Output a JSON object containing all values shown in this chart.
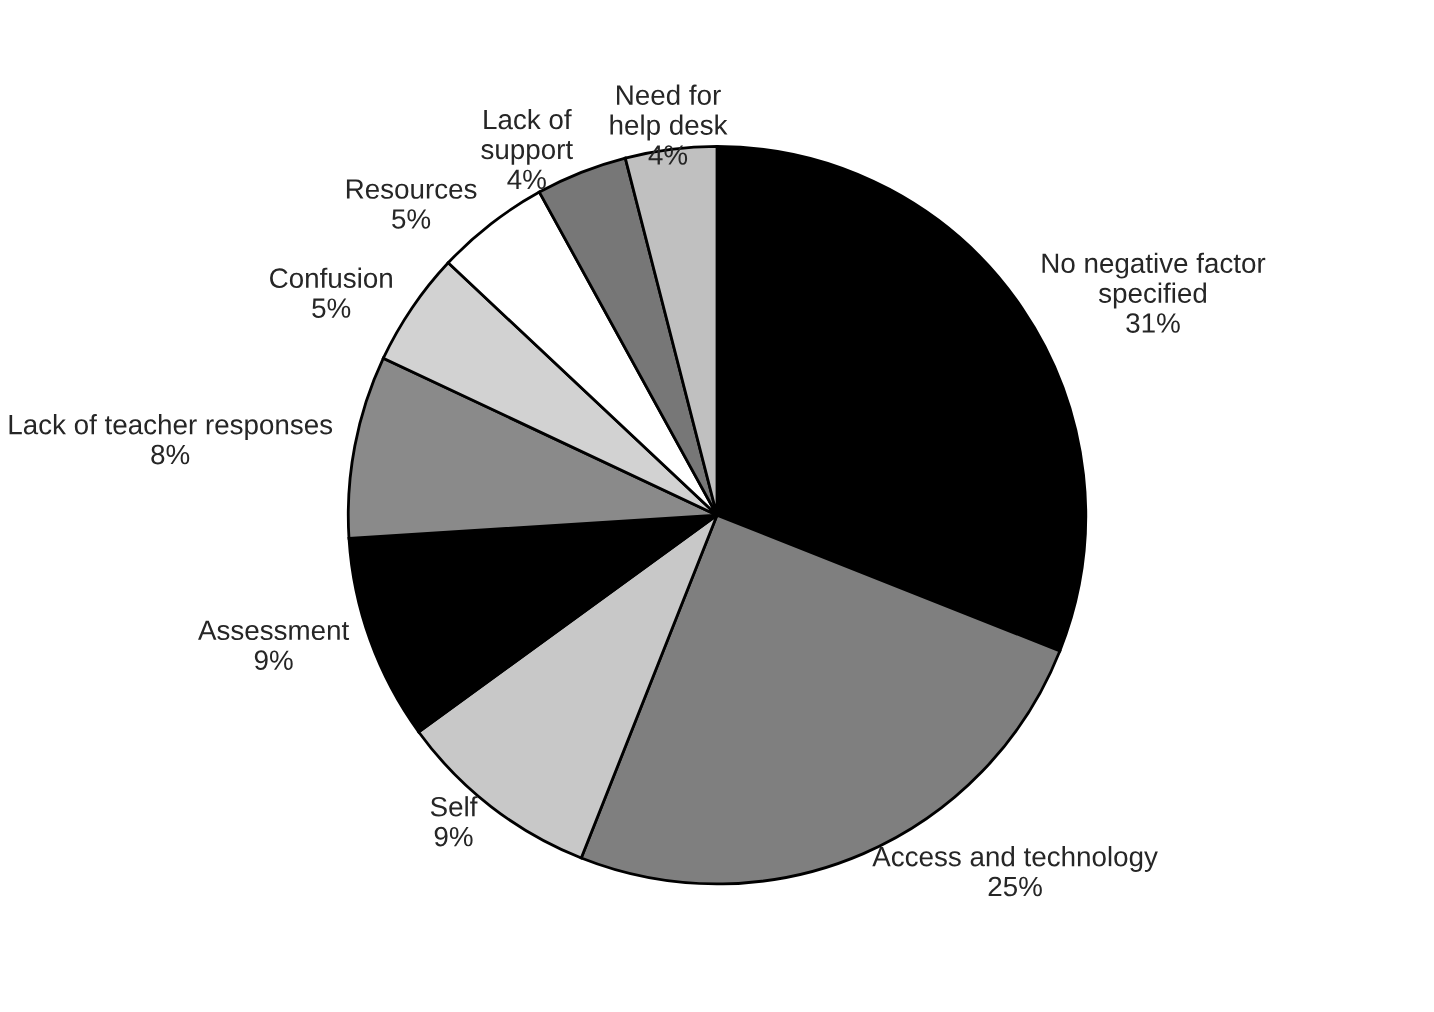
{
  "chart_data": {
    "type": "pie",
    "categories": [
      "No negative factor\nspecified",
      "Access and technology",
      "Self",
      "Assessment",
      "Lack of teacher responses",
      "Confusion",
      "Resources",
      "Lack of\nsupport",
      "Need for\nhelp desk"
    ],
    "values": [
      31,
      25,
      9,
      9,
      8,
      5,
      5,
      4,
      4
    ],
    "value_labels": [
      "31%",
      "25%",
      "9%",
      "9%",
      "8%",
      "5%",
      "5%",
      "4%",
      "4%"
    ],
    "colors": [
      "#000000",
      "#7f7f7f",
      "#c8c8c8",
      "#000000",
      "#8a8a8a",
      "#d2d2d2",
      "#ffffff",
      "#777777",
      "#c0c0c0"
    ],
    "legend": false
  }
}
